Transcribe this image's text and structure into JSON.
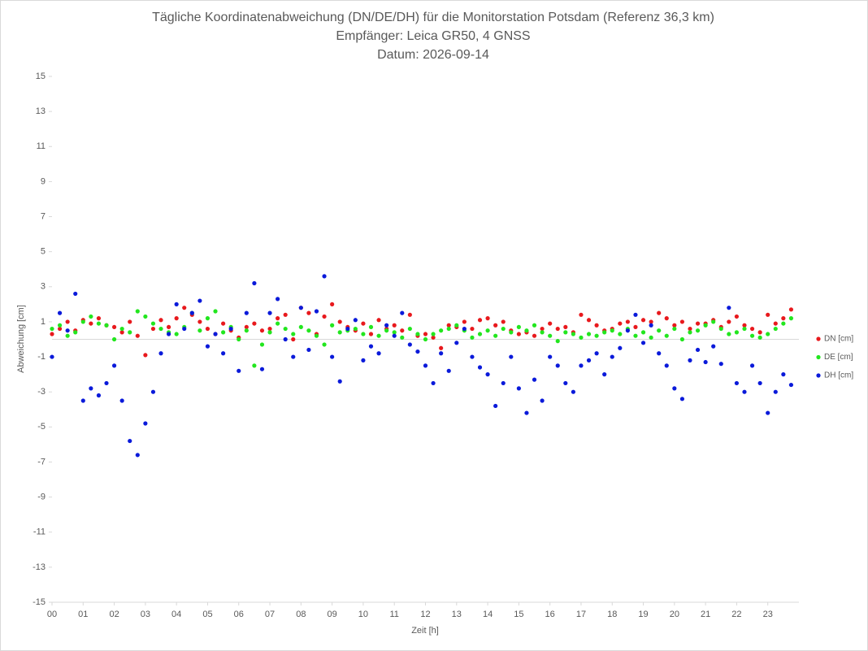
{
  "chart_data": {
    "type": "scatter",
    "title": "Tägliche Koordinatenabweichung (DN/DE/DH) für die Monitorstation Potsdam (Referenz 36,3 km)",
    "subtitle": [
      "Empfänger: Leica GR50, 4 GNSS",
      "Datum: 2026-09-14"
    ],
    "xlabel": "Zeit [h]",
    "ylabel": "Abweichung [cm]",
    "xlim": [
      0,
      24
    ],
    "ylim": [
      -15,
      15
    ],
    "xticks": [
      {
        "value": 0,
        "label": "00"
      },
      {
        "value": 1,
        "label": "01"
      },
      {
        "value": 2,
        "label": "02"
      },
      {
        "value": 3,
        "label": "03"
      },
      {
        "value": 4,
        "label": "04"
      },
      {
        "value": 5,
        "label": "05"
      },
      {
        "value": 6,
        "label": "06"
      },
      {
        "value": 7,
        "label": "07"
      },
      {
        "value": 8,
        "label": "08"
      },
      {
        "value": 9,
        "label": "09"
      },
      10,
      11,
      12,
      13,
      14,
      15,
      16,
      17,
      18,
      19,
      20,
      21,
      22,
      23
    ],
    "yticks": [
      -15,
      -13,
      -11,
      -9,
      -7,
      -5,
      -3,
      -1,
      1,
      3,
      5,
      7,
      9,
      11,
      13,
      15
    ],
    "legend": "right",
    "x": [
      0,
      0.25,
      0.5,
      0.75,
      1,
      1.25,
      1.5,
      1.75,
      2,
      2.25,
      2.5,
      2.75,
      3,
      3.25,
      3.5,
      3.75,
      4,
      4.25,
      4.5,
      4.75,
      5,
      5.25,
      5.5,
      5.75,
      6,
      6.25,
      6.5,
      6.75,
      7,
      7.25,
      7.5,
      7.75,
      8,
      8.25,
      8.5,
      8.75,
      9,
      9.25,
      9.5,
      9.75,
      10,
      10.25,
      10.5,
      10.75,
      11,
      11.25,
      11.5,
      11.75,
      12,
      12.25,
      12.5,
      12.75,
      13,
      13.25,
      13.5,
      13.75,
      14,
      14.25,
      14.5,
      14.75,
      15,
      15.25,
      15.5,
      15.75,
      16,
      16.25,
      16.5,
      16.75,
      17,
      17.25,
      17.5,
      17.75,
      18,
      18.25,
      18.5,
      18.75,
      19,
      19.25,
      19.5,
      19.75,
      20,
      20.25,
      20.5,
      20.75,
      21,
      21.25,
      21.5,
      21.75,
      22,
      22.25,
      22.5,
      22.75,
      23,
      23.25,
      23.5,
      23.75
    ],
    "series": [
      {
        "name": "DN [cm]",
        "color": "#e8191d",
        "values": [
          0.3,
          0.6,
          1.0,
          0.5,
          1.1,
          0.9,
          1.2,
          0.8,
          0.7,
          0.4,
          1.0,
          0.2,
          -0.9,
          0.6,
          1.1,
          0.7,
          1.2,
          1.8,
          1.4,
          1.0,
          0.6,
          0.3,
          0.9,
          0.5,
          0.1,
          0.7,
          0.9,
          0.5,
          0.6,
          1.2,
          1.4,
          0.0,
          1.8,
          1.5,
          0.3,
          1.3,
          2.0,
          1.0,
          0.7,
          0.5,
          0.9,
          0.3,
          1.1,
          0.6,
          0.8,
          0.5,
          1.4,
          0.2,
          0.3,
          0.1,
          -0.5,
          0.8,
          0.7,
          1.0,
          0.6,
          1.1,
          1.2,
          0.8,
          1.0,
          0.5,
          0.3,
          0.4,
          0.2,
          0.6,
          0.9,
          0.6,
          0.7,
          0.4,
          1.4,
          1.1,
          0.8,
          0.5,
          0.6,
          0.9,
          1.0,
          0.7,
          1.1,
          1.0,
          1.5,
          1.2,
          0.8,
          1.0,
          0.6,
          0.9,
          0.9,
          1.1,
          0.7,
          1.0,
          1.3,
          0.8,
          0.6,
          0.4,
          1.4,
          0.9,
          1.2,
          1.7
        ]
      },
      {
        "name": "DE [cm]",
        "color": "#22e61e",
        "values": [
          0.6,
          0.8,
          0.2,
          0.4,
          1.0,
          1.3,
          0.9,
          0.8,
          0.0,
          0.6,
          0.4,
          1.6,
          1.3,
          0.9,
          0.6,
          0.4,
          0.3,
          0.7,
          1.5,
          0.5,
          1.2,
          1.6,
          0.4,
          0.7,
          0.0,
          0.5,
          -1.5,
          -0.3,
          0.4,
          0.9,
          0.6,
          0.3,
          0.7,
          0.5,
          0.2,
          -0.3,
          0.8,
          0.4,
          0.5,
          0.6,
          0.3,
          0.7,
          0.2,
          0.5,
          0.4,
          0.1,
          0.6,
          0.3,
          0.0,
          0.3,
          0.5,
          0.6,
          0.8,
          0.5,
          0.1,
          0.3,
          0.5,
          0.2,
          0.6,
          0.4,
          0.7,
          0.5,
          0.8,
          0.4,
          0.2,
          -0.1,
          0.4,
          0.3,
          0.1,
          0.3,
          0.2,
          0.4,
          0.5,
          0.3,
          0.6,
          0.2,
          0.4,
          0.1,
          0.5,
          0.2,
          0.6,
          0.0,
          0.4,
          0.5,
          0.8,
          1.0,
          0.6,
          0.3,
          0.4,
          0.6,
          0.2,
          0.1,
          0.3,
          0.6,
          0.9,
          1.2
        ]
      },
      {
        "name": "DH [cm]",
        "color": "#0a1ada",
        "values": [
          -1.0,
          1.5,
          0.5,
          2.6,
          -3.5,
          -2.8,
          -3.2,
          -2.5,
          -1.5,
          -3.5,
          -5.8,
          -6.6,
          -4.8,
          -3.0,
          -0.8,
          0.3,
          2.0,
          0.6,
          1.5,
          2.2,
          -0.4,
          0.3,
          -0.8,
          0.6,
          -1.8,
          1.5,
          3.2,
          -1.7,
          1.5,
          2.3,
          0.0,
          -1.0,
          1.8,
          -0.6,
          1.6,
          3.6,
          -1.0,
          -2.4,
          0.6,
          1.1,
          -1.2,
          -0.4,
          -0.8,
          0.8,
          0.2,
          1.5,
          -0.3,
          -0.7,
          -1.5,
          -2.5,
          -0.8,
          -1.8,
          -0.2,
          0.6,
          -1.0,
          -1.6,
          -2.0,
          -3.8,
          -2.5,
          -1.0,
          -2.8,
          -4.2,
          -2.3,
          -3.5,
          -1.0,
          -1.5,
          -2.5,
          -3.0,
          -1.5,
          -1.2,
          -0.8,
          -2.0,
          -1.0,
          -0.5,
          0.5,
          1.4,
          -0.2,
          0.8,
          -0.8,
          -1.5,
          -2.8,
          -3.4,
          -1.2,
          -0.6,
          -1.3,
          -0.4,
          -1.4,
          1.8,
          -2.5,
          -3.0,
          -1.5,
          -2.5,
          -4.2,
          -3.0,
          -2.0,
          -2.6
        ]
      }
    ]
  }
}
